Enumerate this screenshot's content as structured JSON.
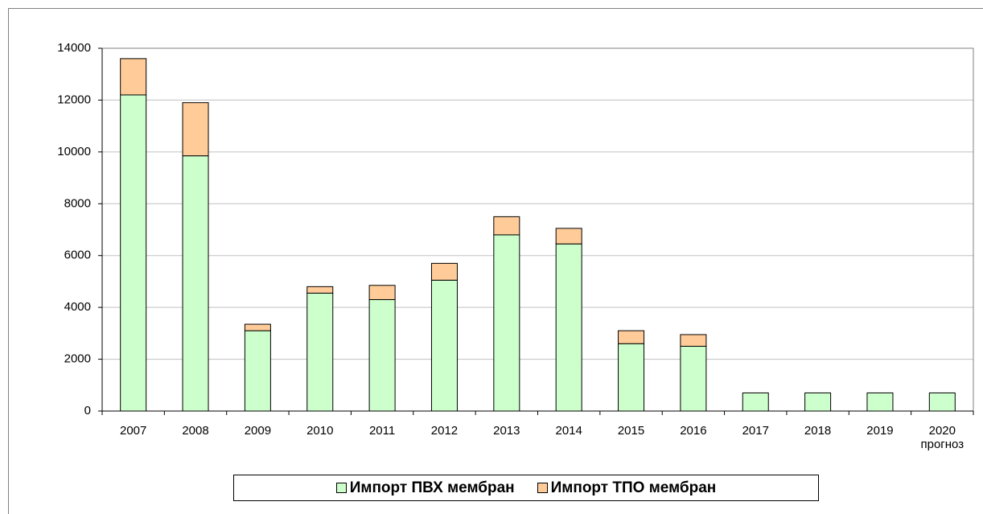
{
  "chart_data": {
    "type": "stacked_bar",
    "categories": [
      "2007",
      "2008",
      "2009",
      "2010",
      "2011",
      "2012",
      "2013",
      "2014",
      "2015",
      "2016",
      "2017",
      "2018",
      "2019",
      "2020\nпрогноз"
    ],
    "series": [
      {
        "name": "Импорт ПВХ мембран",
        "color": "#ccffcc",
        "values": [
          12200,
          9850,
          3100,
          4550,
          4300,
          5050,
          6800,
          6450,
          2600,
          2500,
          700,
          700,
          700,
          700
        ]
      },
      {
        "name": "Импорт ТПО мембран",
        "color": "#ffcc99",
        "values": [
          1400,
          2050,
          250,
          250,
          550,
          650,
          700,
          600,
          500,
          450,
          0,
          0,
          0,
          0
        ]
      }
    ],
    "ylim": [
      0,
      14000
    ],
    "yticks": [
      0,
      2000,
      4000,
      6000,
      8000,
      10000,
      12000,
      14000
    ],
    "grid": true,
    "legend": "bottom"
  }
}
